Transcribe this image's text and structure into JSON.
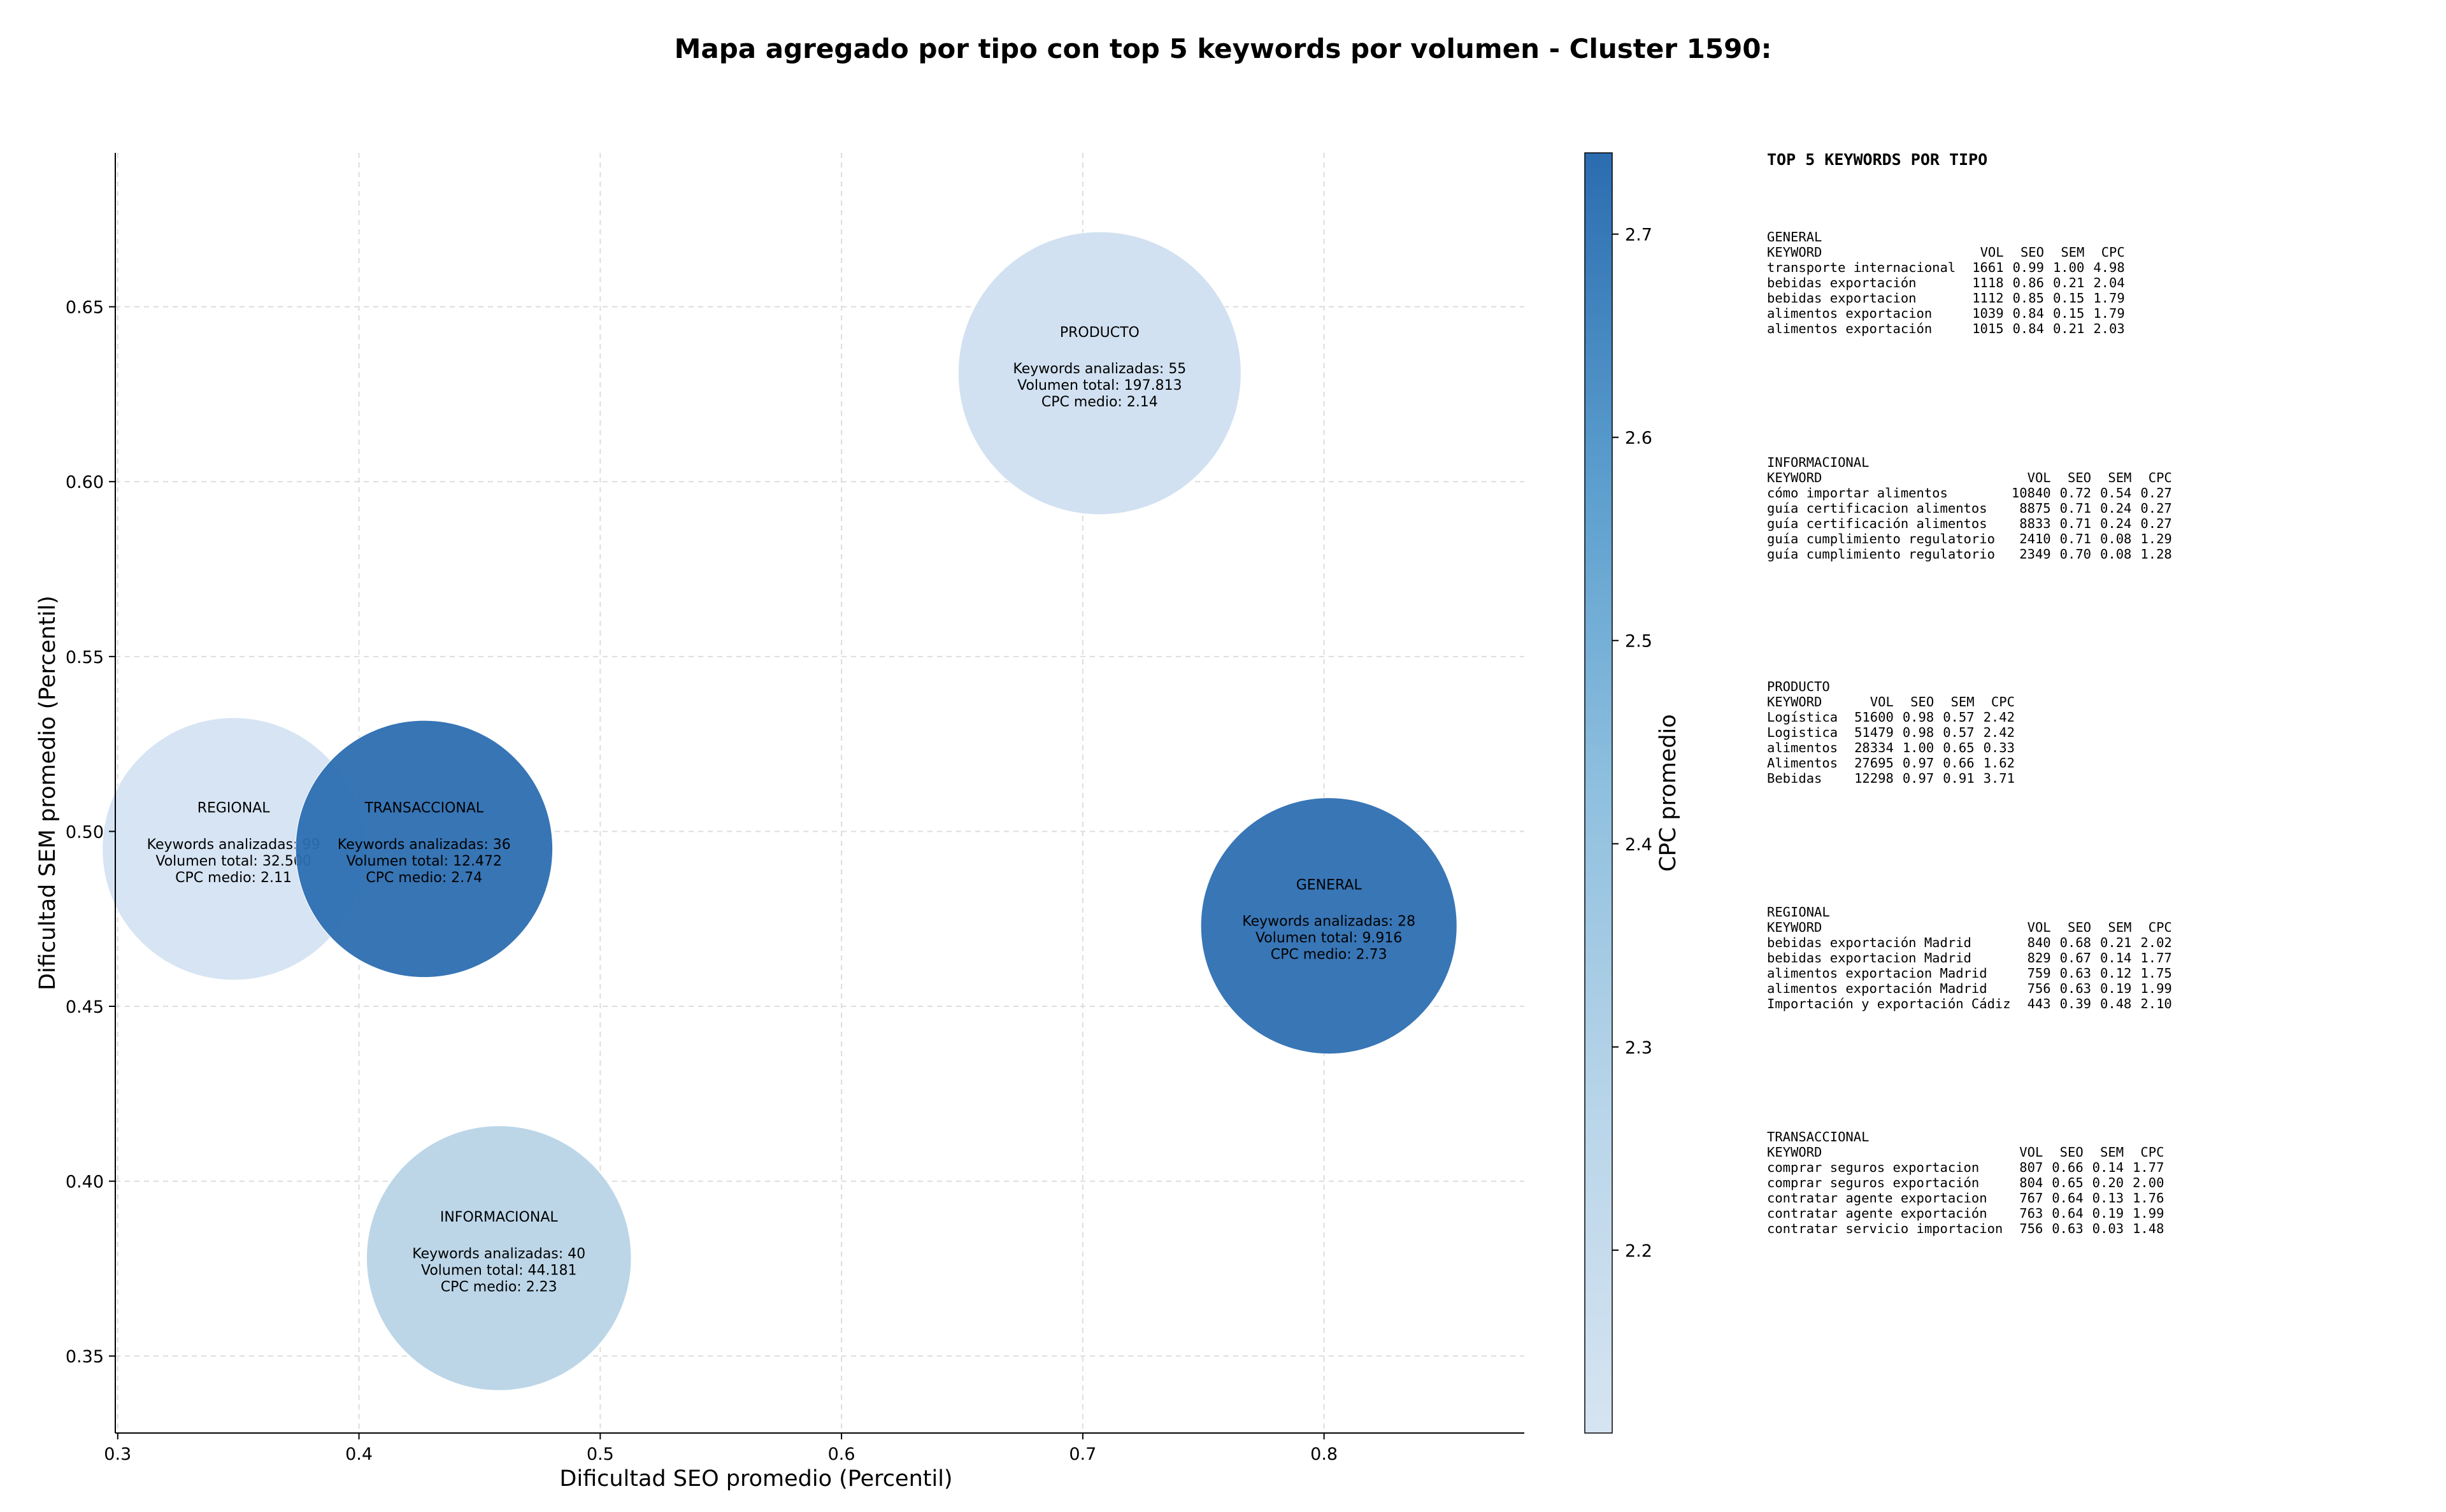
{
  "chart_data": {
    "type": "scatter",
    "title": "Mapa agregado por tipo con top 5 keywords por volumen - Cluster 1590:",
    "xlabel": "Dificultad SEO promedio (Percentil)",
    "ylabel": "Dificultad SEM promedio (Percentil)",
    "xlim": [
      0.299,
      0.883
    ],
    "ylim": [
      0.328,
      0.694
    ],
    "xticks": [
      0.3,
      0.4,
      0.5,
      0.6,
      0.7,
      0.8
    ],
    "yticks": [
      0.35,
      0.4,
      0.45,
      0.5,
      0.55,
      0.6,
      0.65
    ],
    "grid": true,
    "colorbar": {
      "label": "CPC promedio",
      "min": 2.11,
      "max": 2.74,
      "ticks": [
        2.2,
        2.3,
        2.4,
        2.5,
        2.6,
        2.7
      ],
      "colormap": "Blues"
    },
    "points": [
      {
        "name": "PRODUCTO",
        "x": 0.707,
        "y": 0.631,
        "keywords_line": "Keywords analizadas: 55",
        "volume_line": "Volumen total: 197.813",
        "cpc_line": "CPC medio: 2.14",
        "cpc": 2.14,
        "volume": 197813
      },
      {
        "name": "REGIONAL",
        "x": 0.348,
        "y": 0.495,
        "keywords_line": "Keywords analizadas: 99",
        "volume_line": "Volumen total: 32.500",
        "cpc_line": "CPC medio: 2.11",
        "cpc": 2.11,
        "volume": 32500
      },
      {
        "name": "TRANSACCIONAL",
        "x": 0.427,
        "y": 0.495,
        "keywords_line": "Keywords analizadas: 36",
        "volume_line": "Volumen total: 12.472",
        "cpc_line": "CPC medio: 2.74",
        "cpc": 2.74,
        "volume": 12472
      },
      {
        "name": "GENERAL",
        "x": 0.802,
        "y": 0.473,
        "keywords_line": "Keywords analizadas: 28",
        "volume_line": "Volumen total: 9.916",
        "cpc_line": "CPC medio: 2.73",
        "cpc": 2.73,
        "volume": 9916
      },
      {
        "name": "INFORMACIONAL",
        "x": 0.458,
        "y": 0.378,
        "keywords_line": "Keywords analizadas: 40",
        "volume_line": "Volumen total: 44.181",
        "cpc_line": "CPC medio: 2.23",
        "cpc": 2.23,
        "volume": 44181
      }
    ],
    "colors": {
      "PRODUCTO": "#cfdff0",
      "REGIONAL": "#d4e3f2",
      "TRANSACCIONAL": "#2c6eb1",
      "GENERAL": "#2d6fb2",
      "INFORMACIONAL": "#b8d4e7"
    }
  },
  "side_panel": {
    "title": "TOP 5 KEYWORDS POR TIPO",
    "blocks": [
      {
        "name": "GENERAL",
        "header": [
          "KEYWORD",
          "VOL",
          "SEO",
          "SEM",
          "CPC"
        ],
        "rows": [
          [
            "transporte internacional",
            "1661",
            "0.99",
            "1.00",
            "4.98"
          ],
          [
            "bebidas exportación",
            "1118",
            "0.86",
            "0.21",
            "2.04"
          ],
          [
            "bebidas exportacion",
            "1112",
            "0.85",
            "0.15",
            "1.79"
          ],
          [
            "alimentos exportacion",
            "1039",
            "0.84",
            "0.15",
            "1.79"
          ],
          [
            "alimentos exportación",
            "1015",
            "0.84",
            "0.21",
            "2.03"
          ]
        ]
      },
      {
        "name": "INFORMACIONAL",
        "header": [
          "KEYWORD",
          "VOL",
          "SEO",
          "SEM",
          "CPC"
        ],
        "rows": [
          [
            "cómo importar alimentos",
            "10840",
            "0.72",
            "0.54",
            "0.27"
          ],
          [
            "guía certificacion alimentos",
            "8875",
            "0.71",
            "0.24",
            "0.27"
          ],
          [
            "guía certificación alimentos",
            "8833",
            "0.71",
            "0.24",
            "0.27"
          ],
          [
            "guía cumplimiento regulatorio",
            "2410",
            "0.71",
            "0.08",
            "1.29"
          ],
          [
            "guía cumplimiento regulatorio",
            "2349",
            "0.70",
            "0.08",
            "1.28"
          ]
        ]
      },
      {
        "name": "PRODUCTO",
        "header": [
          "KEYWORD",
          "VOL",
          "SEO",
          "SEM",
          "CPC"
        ],
        "rows": [
          [
            "Logística",
            "51600",
            "0.98",
            "0.57",
            "2.42"
          ],
          [
            "Logistica",
            "51479",
            "0.98",
            "0.57",
            "2.42"
          ],
          [
            "alimentos",
            "28334",
            "1.00",
            "0.65",
            "0.33"
          ],
          [
            "Alimentos",
            "27695",
            "0.97",
            "0.66",
            "1.62"
          ],
          [
            "Bebidas",
            "12298",
            "0.97",
            "0.91",
            "3.71"
          ]
        ]
      },
      {
        "name": "REGIONAL",
        "header": [
          "KEYWORD",
          "VOL",
          "SEO",
          "SEM",
          "CPC"
        ],
        "rows": [
          [
            "bebidas exportación Madrid",
            "840",
            "0.68",
            "0.21",
            "2.02"
          ],
          [
            "bebidas exportacion Madrid",
            "829",
            "0.67",
            "0.14",
            "1.77"
          ],
          [
            "alimentos exportacion Madrid",
            "759",
            "0.63",
            "0.12",
            "1.75"
          ],
          [
            "alimentos exportación Madrid",
            "756",
            "0.63",
            "0.19",
            "1.99"
          ],
          [
            "Importación y exportación Cádiz",
            "443",
            "0.39",
            "0.48",
            "2.10"
          ]
        ]
      },
      {
        "name": "TRANSACCIONAL",
        "header": [
          "KEYWORD",
          "VOL",
          "SEO",
          "SEM",
          "CPC"
        ],
        "rows": [
          [
            "comprar seguros exportacion",
            "807",
            "0.66",
            "0.14",
            "1.77"
          ],
          [
            "comprar seguros exportación",
            "804",
            "0.65",
            "0.20",
            "2.00"
          ],
          [
            "contratar agente exportacion",
            "767",
            "0.64",
            "0.13",
            "1.76"
          ],
          [
            "contratar agente exportación",
            "763",
            "0.64",
            "0.19",
            "1.99"
          ],
          [
            "contratar servicio importacion",
            "756",
            "0.63",
            "0.03",
            "1.48"
          ]
        ]
      }
    ]
  }
}
